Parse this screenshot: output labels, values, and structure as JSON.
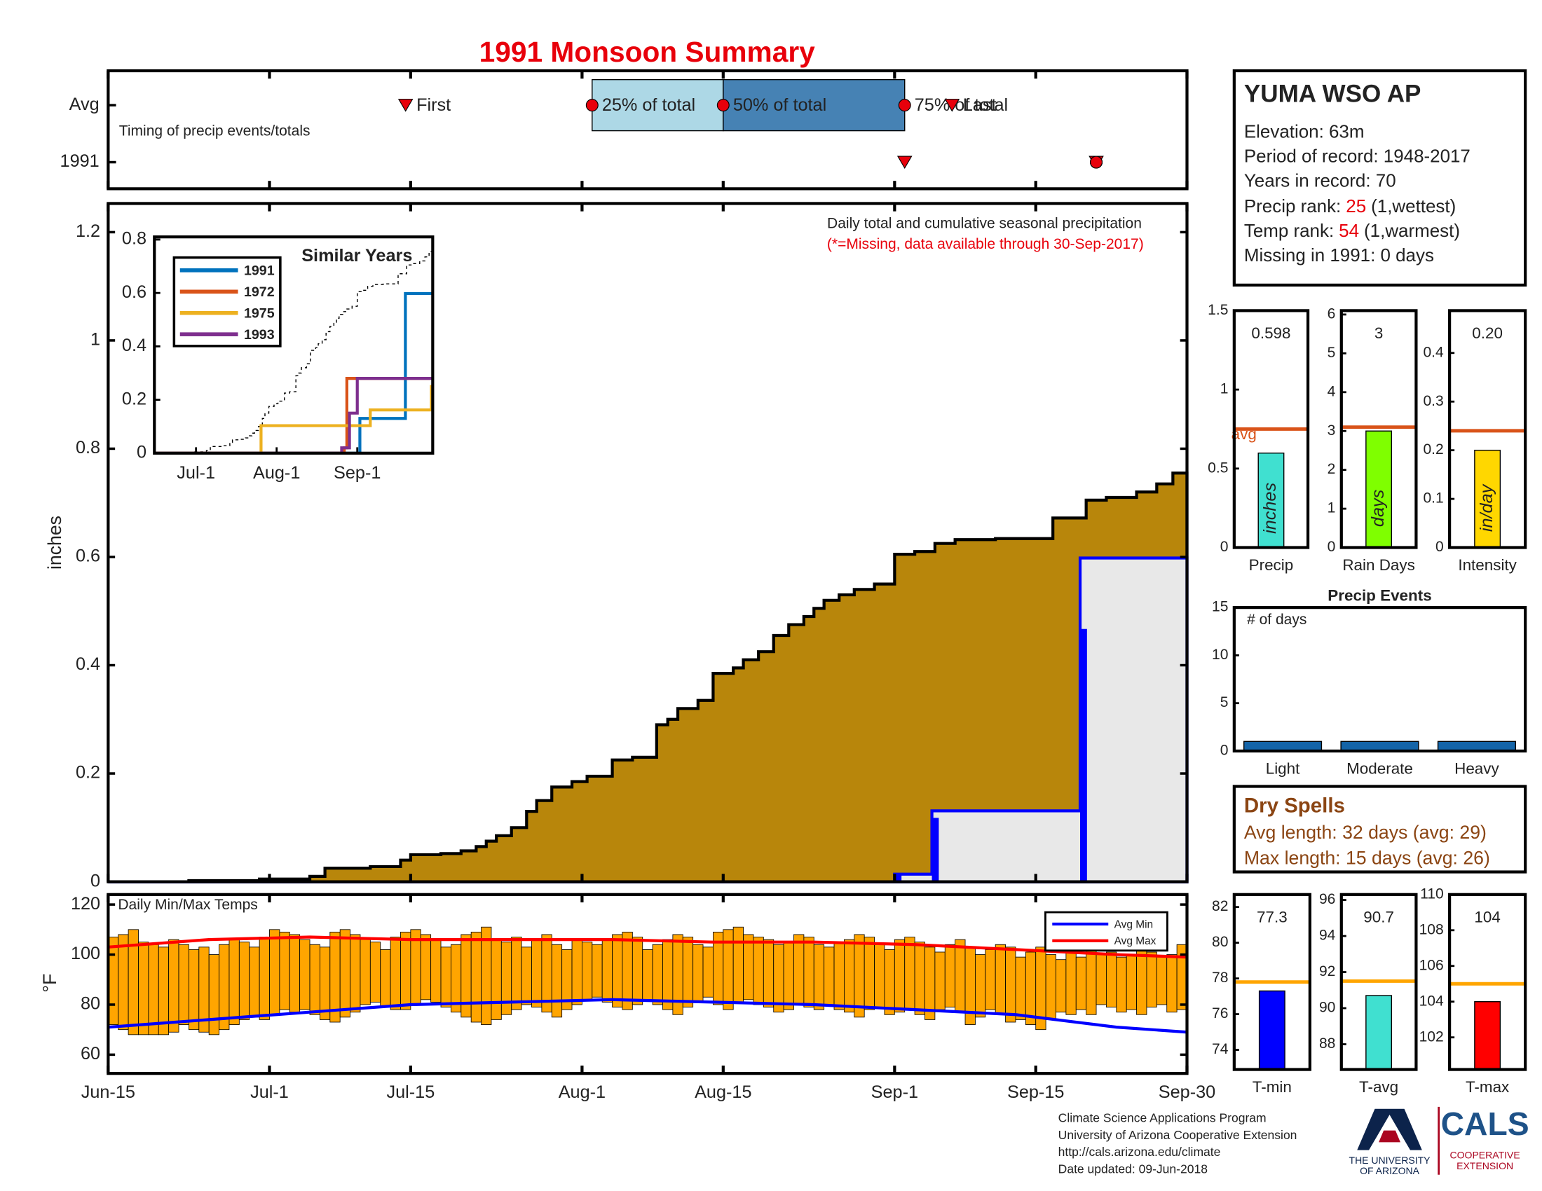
{
  "title": "1991 Monsoon Summary",
  "station": {
    "name": "YUMA WSO AP",
    "elevation": "Elevation: 63m",
    "period": "Period of record: 1948-2017",
    "years": "Years in record: 70",
    "precip_rank": {
      "label": "Precip rank:",
      "value": 25,
      "note": "(1,wettest)"
    },
    "temp_rank": {
      "label": "Temp rank:",
      "value": 54,
      "note": "(1,warmest)"
    },
    "missing": "Missing in 1991: 0 days"
  },
  "dry_spells": {
    "title": "Dry Spells",
    "avg": "Avg length: 32 days (avg: 29)",
    "max": "Max length: 15 days (avg: 26)"
  },
  "footer": [
    "Climate Science Applications Program",
    "University of Arizona Cooperative Extension",
    "http://cals.arizona.edu/climate",
    " Date updated: 09-Jun-2018"
  ],
  "logo": {
    "university": [
      "THE UNIVERSITY",
      "OF ARIZONA"
    ],
    "cals": "CALS",
    "extension": [
      "COOPERATIVE",
      "EXTENSION"
    ]
  },
  "chart_data": [
    {
      "type": "timeline",
      "label": "Timing of precip events/totals",
      "xlim": [
        0,
        107
      ],
      "rows": [
        {
          "label": "Avg",
          "first": 29.5,
          "p25": 48,
          "p50": 61,
          "p75": 79,
          "last": 83.7
        },
        {
          "label": "1991",
          "first": 79,
          "p25": 98,
          "p50": 98,
          "p75": 98,
          "last": 98
        }
      ],
      "marker_labels": {
        "first": "First",
        "p25": "25% of total",
        "p50": "50% of total",
        "p75": "75% of total",
        "last": "Last"
      },
      "box_colors": [
        "#add8e6",
        "#4682b4"
      ],
      "marker_color": "#e8000b"
    },
    {
      "type": "step_area",
      "title": "Daily total and cumulative seasonal precipitation",
      "note": "(*=Missing, data available through 30-Sep-2017)",
      "ylabel": "inches",
      "xlim": [
        0,
        107
      ],
      "ylim": [
        0,
        1.253
      ],
      "yticks": [
        0,
        0.2,
        0.4,
        0.6,
        0.8,
        1,
        1.2
      ],
      "avg_cumulative": {
        "color": "#b8860b",
        "x": [
          0,
          8,
          15,
          20,
          21.5,
          26,
          29,
          30,
          33,
          35,
          36.5,
          37.5,
          38.5,
          40,
          41.5,
          42.5,
          44,
          46,
          47.5,
          50,
          52,
          54.4,
          55.5,
          56.5,
          58.5,
          60,
          62,
          63,
          64.5,
          66,
          67.5,
          69,
          70,
          71,
          72.5,
          74,
          76,
          78,
          80,
          82,
          84,
          88,
          93.7,
          97,
          99,
          102,
          104,
          105.6,
          107
        ],
        "values": [
          0,
          0.002,
          0.005,
          0.01,
          0.025,
          0.028,
          0.04,
          0.05,
          0.052,
          0.057,
          0.065,
          0.075,
          0.085,
          0.1,
          0.13,
          0.15,
          0.175,
          0.185,
          0.195,
          0.225,
          0.23,
          0.29,
          0.3,
          0.32,
          0.335,
          0.385,
          0.395,
          0.41,
          0.425,
          0.455,
          0.475,
          0.49,
          0.505,
          0.52,
          0.53,
          0.54,
          0.55,
          0.605,
          0.61,
          0.625,
          0.632,
          0.634,
          0.672,
          0.705,
          0.71,
          0.72,
          0.735,
          0.755,
          0.755
        ]
      },
      "year_cumulative": {
        "color": "#e8e8e8",
        "line_color": "#0000ff",
        "x": [
          0,
          78,
          81.7,
          96.4,
          107
        ],
        "values": [
          0,
          0.014,
          0.131,
          0.598,
          0.598
        ]
      },
      "year_daily": {
        "color": "#0000ff",
        "x": [
          78,
          81.7,
          96.4
        ],
        "values": [
          0.014,
          0.118,
          0.467
        ]
      }
    },
    {
      "type": "step_line",
      "title": "Similar Years",
      "xlim": [
        0,
        107
      ],
      "ylim": [
        0,
        0.81
      ],
      "yticks": [
        0,
        0.2,
        0.4,
        0.6,
        0.8
      ],
      "xticks": [
        {
          "value": 16,
          "label": "Jul-1"
        },
        {
          "value": 47,
          "label": "Aug-1"
        },
        {
          "value": 78,
          "label": "Sep-1"
        }
      ],
      "show_average": true,
      "legend": "upper left",
      "series": [
        {
          "name": "1991",
          "color": "#0072bd",
          "x": [
            0,
            79,
            96.5,
            107
          ],
          "values": [
            0,
            0.13,
            0.598,
            0.598
          ]
        },
        {
          "name": "1972",
          "color": "#d95319",
          "x": [
            0,
            73,
            74,
            107
          ],
          "values": [
            0,
            0.02,
            0.28,
            0.28
          ]
        },
        {
          "name": "1975",
          "color": "#edb120",
          "x": [
            0,
            41,
            83,
            106.5,
            107
          ],
          "values": [
            0,
            0.103,
            0.162,
            0.25,
            0.25
          ]
        },
        {
          "name": "1993",
          "color": "#7e2f8e",
          "x": [
            0,
            72,
            75,
            78,
            107
          ],
          "values": [
            0,
            0.02,
            0.15,
            0.28,
            0.28
          ]
        }
      ]
    },
    {
      "type": "range_bar",
      "title": "Daily Min/Max Temps",
      "ylabel": "°F",
      "xlim": [
        0,
        107
      ],
      "ylim": [
        52.5,
        124
      ],
      "yticks": [
        60,
        80,
        100,
        120
      ],
      "xticks": [
        {
          "value": 0,
          "label": "Jun-15"
        },
        {
          "value": 16,
          "label": "Jul-1"
        },
        {
          "value": 30,
          "label": "Jul-15"
        },
        {
          "value": 47,
          "label": "Aug-1"
        },
        {
          "value": 61,
          "label": "Aug-15"
        },
        {
          "value": 78,
          "label": "Sep-1"
        },
        {
          "value": 92,
          "label": "Sep-15"
        },
        {
          "value": 107,
          "label": "Sep-30"
        }
      ],
      "bar_color": "#ffa500",
      "legend": "upper right",
      "max": [
        107,
        108,
        110,
        105,
        104,
        103,
        106,
        104,
        102,
        103,
        100,
        104,
        106,
        105,
        103,
        107,
        110,
        109,
        108,
        106,
        104,
        103,
        109,
        110,
        108,
        106,
        105,
        102,
        107,
        109,
        110,
        108,
        106,
        103,
        104,
        108,
        109,
        111,
        106,
        105,
        107,
        103,
        106,
        108,
        104,
        102,
        106,
        105,
        104,
        106,
        108,
        109,
        107,
        102,
        104,
        106,
        108,
        107,
        104,
        103,
        109,
        110,
        111,
        108,
        107,
        106,
        104,
        105,
        108,
        107,
        104,
        103,
        105,
        106,
        108,
        107,
        104,
        102,
        106,
        107,
        105,
        103,
        101,
        104,
        106,
        103,
        100,
        102,
        104,
        103,
        99,
        101,
        103,
        100,
        98,
        101,
        99,
        102,
        100,
        101,
        99,
        100,
        102,
        101,
        99,
        100,
        104
      ],
      "min": [
        72,
        70,
        68,
        68,
        68,
        68,
        69,
        72,
        70,
        69,
        68,
        70,
        72,
        74,
        75,
        74,
        76,
        78,
        77,
        78,
        76,
        74,
        73,
        75,
        77,
        80,
        81,
        79,
        78,
        78,
        80,
        82,
        81,
        79,
        77,
        75,
        73,
        72,
        74,
        76,
        78,
        80,
        79,
        77,
        75,
        78,
        80,
        82,
        83,
        81,
        79,
        78,
        80,
        82,
        80,
        78,
        76,
        79,
        81,
        83,
        80,
        78,
        81,
        82,
        80,
        79,
        77,
        78,
        80,
        79,
        78,
        80,
        78,
        77,
        75,
        78,
        79,
        76,
        77,
        78,
        76,
        74,
        78,
        79,
        77,
        72,
        75,
        78,
        76,
        73,
        74,
        72,
        70,
        74,
        77,
        76,
        78,
        76,
        80,
        79,
        77,
        78,
        76,
        79,
        80,
        77,
        78
      ],
      "series": [
        {
          "name": "Avg Min",
          "color": "#0000ff",
          "x": [
            0,
            10,
            20,
            30,
            40,
            50,
            60,
            70,
            80,
            90,
            100,
            107
          ],
          "values": [
            71,
            74,
            77,
            80,
            81,
            82,
            81,
            80,
            78,
            76,
            71,
            69
          ]
        },
        {
          "name": "Avg Max",
          "color": "#ff0000",
          "x": [
            0,
            10,
            20,
            30,
            40,
            50,
            60,
            70,
            80,
            90,
            100,
            107
          ],
          "values": [
            103,
            106,
            107,
            106,
            106,
            106,
            105,
            105,
            104,
            102,
            100,
            99
          ]
        }
      ]
    },
    {
      "type": "bar",
      "categories": [
        "Precip"
      ],
      "values": [
        0.598
      ],
      "color": "#40e0d0",
      "ylim": [
        0,
        1.5
      ],
      "yticks": [
        0,
        0.5,
        1,
        1.5
      ],
      "avg": 0.75,
      "avg_color": "#d95319",
      "avg_label": "avg",
      "unit": "inches"
    },
    {
      "type": "bar",
      "categories": [
        "Rain Days"
      ],
      "values": [
        3
      ],
      "color": "#7fff00",
      "ylim": [
        0,
        6.1
      ],
      "yticks": [
        0,
        1,
        2,
        3,
        4,
        5,
        6
      ],
      "avg": 3.1,
      "avg_color": "#d95319",
      "unit": "days"
    },
    {
      "type": "bar",
      "categories": [
        "Intensity"
      ],
      "values": [
        0.2
      ],
      "value_labels": [
        "0.20"
      ],
      "color": "#ffd700",
      "ylim": [
        0,
        0.487
      ],
      "yticks": [
        0,
        0.1,
        0.2,
        0.3,
        0.4
      ],
      "avg": 0.24,
      "avg_color": "#d95319",
      "unit": "in/day"
    },
    {
      "type": "bar",
      "title": "Precip Events",
      "label": "# of days",
      "categories": [
        "Light",
        "Moderate",
        "Heavy"
      ],
      "values": [
        1,
        1,
        1
      ],
      "color": "#1464a8",
      "ylim": [
        0,
        15
      ],
      "yticks": [
        0,
        5,
        10,
        15
      ]
    },
    {
      "type": "bar",
      "categories": [
        "T-min"
      ],
      "values": [
        77.3
      ],
      "color": "#0000ff",
      "ylim": [
        72.9,
        82.7
      ],
      "yticks": [
        74,
        76,
        78,
        80,
        82
      ],
      "avg": 77.8,
      "avg_color": "#ffa500"
    },
    {
      "type": "bar",
      "categories": [
        "T-avg"
      ],
      "values": [
        90.7
      ],
      "color": "#40e0d0",
      "ylim": [
        86.6,
        96.3
      ],
      "yticks": [
        88,
        90,
        92,
        94,
        96
      ],
      "avg": 91.5,
      "avg_color": "#ffa500"
    },
    {
      "type": "bar",
      "categories": [
        "T-max"
      ],
      "values": [
        104
      ],
      "color": "#ff0000",
      "ylim": [
        100.2,
        110
      ],
      "yticks": [
        102,
        104,
        106,
        108,
        110
      ],
      "avg": 105,
      "avg_color": "#ffa500"
    }
  ]
}
